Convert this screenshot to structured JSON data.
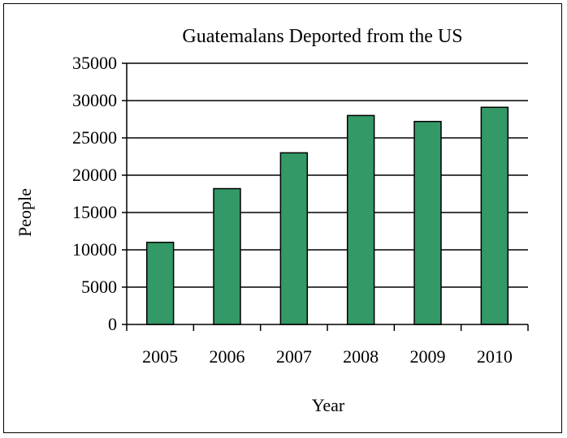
{
  "chart_data": {
    "type": "bar",
    "title": "Guatemalans Deported from the US",
    "xlabel": "Year",
    "ylabel": "People",
    "categories": [
      "2005",
      "2006",
      "2007",
      "2008",
      "2009",
      "2010"
    ],
    "values": [
      11000,
      18200,
      23000,
      28000,
      27200,
      29100
    ],
    "ylim": [
      0,
      35000
    ],
    "yticks": [
      0,
      5000,
      10000,
      15000,
      20000,
      25000,
      30000,
      35000
    ],
    "grid": true,
    "legend": "none",
    "bar_color": "#339966"
  }
}
